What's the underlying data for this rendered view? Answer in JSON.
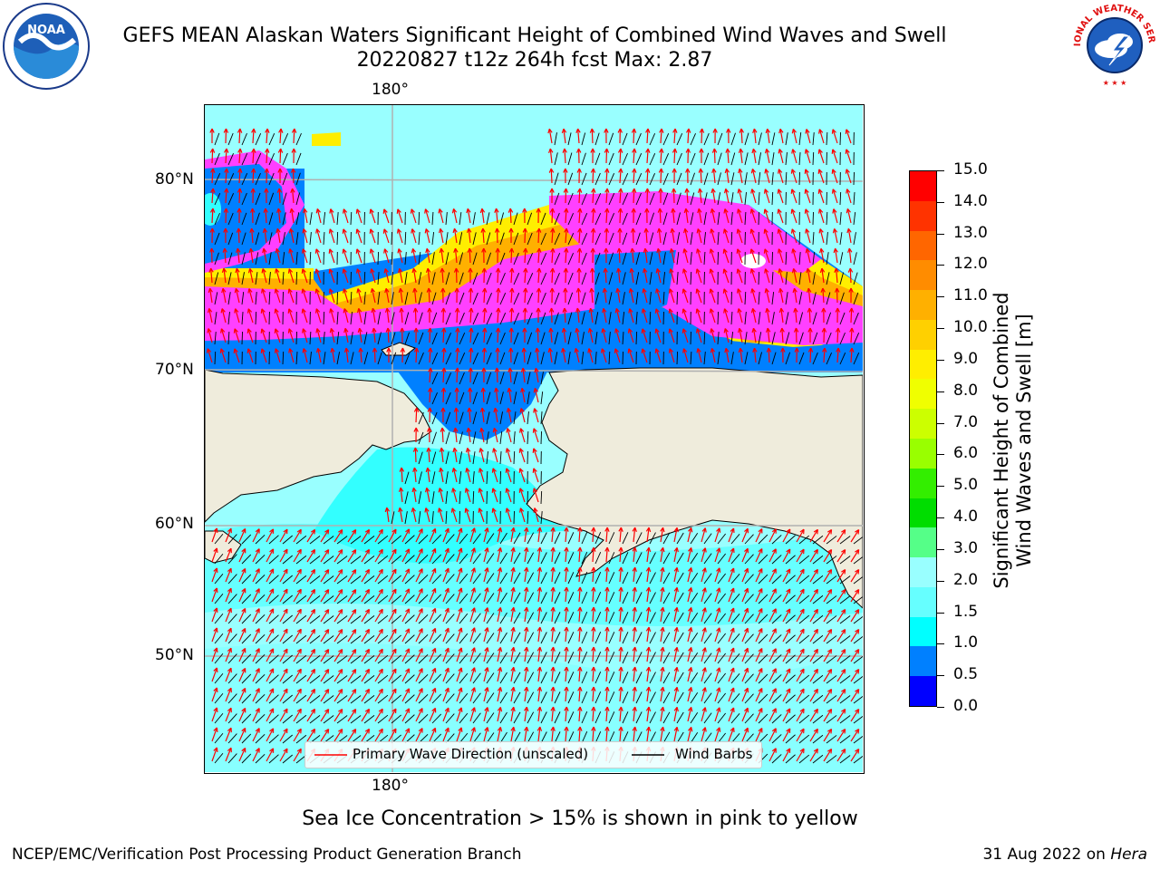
{
  "header": {
    "title_line1": "GEFS MEAN Alaskan Waters Significant Height of Combined Wind Waves and Swell",
    "title_line2": "20220827 t12z 264h fcst   Max: 2.87",
    "left_logo_text": "NOAA",
    "right_logo_text": "NATIONAL WEATHER SERVICE"
  },
  "map": {
    "top_lon_label": "180°",
    "bottom_lon_label": "180°",
    "lat_labels": [
      "80°N",
      "70°N",
      "60°N",
      "50°N"
    ],
    "colors": {
      "land": "#efecdc",
      "ocean_light": "#66ffff",
      "ocean_pale": "#99ffff",
      "ocean_cyan": "#00ffff",
      "ocean_blue": "#0080ff",
      "ice_pink": "#ff40ff",
      "ice_orange": "#ffb000",
      "ice_yellow": "#ffee00",
      "grid": "#b0b0b0",
      "wave_arrow": "#ff0000",
      "wind_barb": "#000000"
    },
    "legend": {
      "wave_label": "Primary Wave Direction (unscaled)",
      "wind_label": "Wind Barbs"
    }
  },
  "colorbar": {
    "title_line1": "Significant Height of Combined",
    "title_line2": "Wind Waves and Swell [m]",
    "tick_labels": [
      "15.0",
      "14.0",
      "13.0",
      "12.0",
      "11.0",
      "10.0",
      "9.0",
      "8.0",
      "7.0",
      "6.0",
      "5.0",
      "4.0",
      "3.0",
      "2.0",
      "1.5",
      "1.0",
      "0.5",
      "0.0"
    ],
    "bands_top_to_bottom": [
      "#ff0000",
      "#ff3300",
      "#ff6600",
      "#ff8c00",
      "#ffb000",
      "#ffd000",
      "#ffee00",
      "#f0ff00",
      "#ccff00",
      "#99ff00",
      "#33ee00",
      "#00dd00",
      "#55ff88",
      "#99ffff",
      "#66ffff",
      "#00ffff",
      "#0080ff",
      "#0000ff"
    ]
  },
  "footer": {
    "note": "Sea Ice Concentration > 15% is shown in pink to yellow",
    "credit": "NCEP/EMC/Verification Post Processing Product Generation Branch",
    "date_prefix": "31 Aug 2022 on ",
    "date_host": "Hera"
  }
}
